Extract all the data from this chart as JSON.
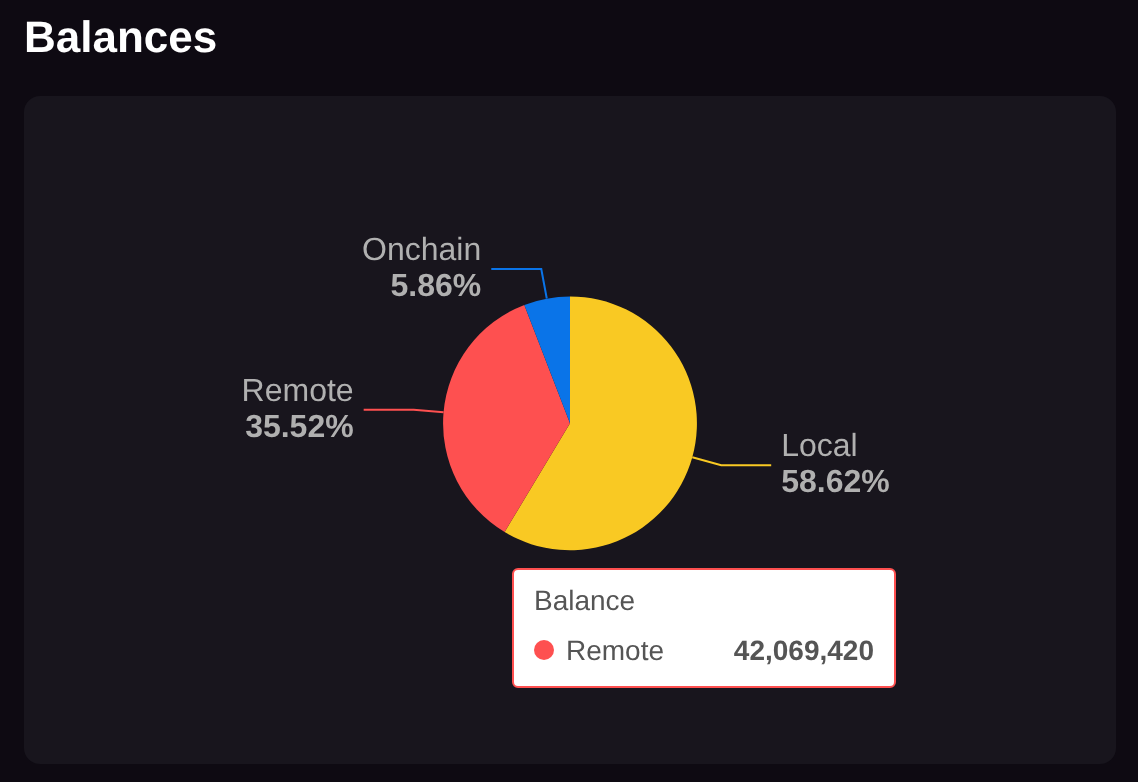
{
  "chart_data": {
    "type": "pie",
    "title": "Balances",
    "categories": [
      "Local",
      "Remote",
      "Onchain"
    ],
    "values": [
      58.62,
      35.52,
      5.86
    ],
    "colors": [
      "#f9c923",
      "#fe5050",
      "#0a74e8"
    ],
    "value_labels": [
      "58.62%",
      "35.52%",
      "5.86%"
    ],
    "legend": false,
    "annotations": [
      "Balance",
      "Remote",
      "42,069,420"
    ]
  }
}
